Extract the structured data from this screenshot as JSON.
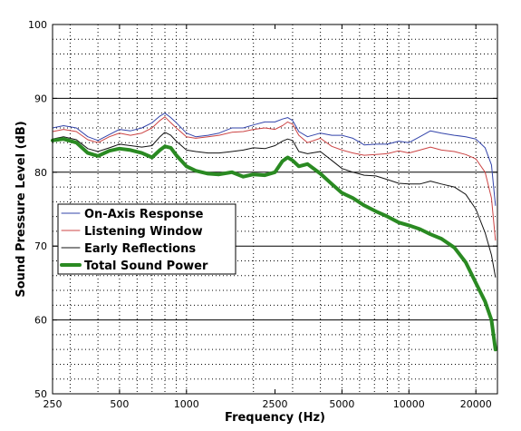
{
  "chart_data": {
    "type": "line",
    "xlabel": "Frequency (Hz)",
    "ylabel": "Sound Pressure Level (dB)",
    "x_scale": "log",
    "xlim": [
      250,
      25000
    ],
    "ylim": [
      50,
      100
    ],
    "x_ticks": [
      250,
      500,
      1000,
      2500,
      5000,
      10000,
      20000
    ],
    "x_tick_labels": [
      "250",
      "500",
      "1000",
      "2500",
      "5000",
      "10000",
      "20000"
    ],
    "y_ticks": [
      50,
      60,
      70,
      80,
      90,
      100
    ],
    "y_tick_labels": [
      "50",
      "60",
      "70",
      "80",
      "90",
      "100"
    ],
    "grid": {
      "major_y": "solid",
      "minor": "dotted"
    },
    "legend": "lower-left",
    "series": [
      {
        "name": "On-Axis Response",
        "color": "#3344aa",
        "x": [
          250,
          280,
          320,
          360,
          400,
          450,
          500,
          560,
          630,
          700,
          760,
          800,
          850,
          900,
          1000,
          1100,
          1250,
          1400,
          1600,
          1800,
          2000,
          2250,
          2500,
          2700,
          2850,
          3000,
          3200,
          3500,
          4000,
          4500,
          5000,
          5600,
          6300,
          7100,
          8000,
          9000,
          10000,
          11200,
          12500,
          14000,
          16000,
          18000,
          20000,
          22000,
          23500,
          24500
        ],
        "y": [
          86.0,
          86.3,
          86.0,
          84.8,
          84.3,
          85.1,
          85.8,
          85.6,
          86.0,
          86.7,
          87.6,
          88.0,
          87.4,
          86.7,
          85.3,
          84.8,
          85.0,
          85.3,
          86.0,
          86.0,
          86.4,
          86.8,
          86.8,
          87.2,
          87.4,
          87.0,
          85.5,
          84.8,
          85.3,
          85.0,
          85.0,
          84.6,
          83.7,
          83.8,
          83.8,
          84.2,
          84.0,
          84.8,
          85.6,
          85.3,
          85.0,
          84.8,
          84.5,
          83.3,
          81.0,
          75.5
        ]
      },
      {
        "name": "Listening Window",
        "color": "#cc4444",
        "x": [
          250,
          280,
          320,
          360,
          400,
          450,
          500,
          560,
          630,
          700,
          760,
          800,
          850,
          900,
          1000,
          1100,
          1250,
          1400,
          1600,
          1800,
          2000,
          2250,
          2500,
          2700,
          2850,
          3000,
          3200,
          3500,
          4000,
          4500,
          5000,
          5600,
          6300,
          7100,
          8000,
          9000,
          10000,
          11200,
          12500,
          14000,
          16000,
          18000,
          20000,
          22000,
          23500,
          24500
        ],
        "y": [
          85.5,
          85.8,
          85.5,
          84.4,
          84.0,
          84.8,
          85.3,
          85.0,
          85.3,
          86.0,
          87.0,
          87.5,
          86.7,
          86.0,
          84.8,
          84.6,
          84.8,
          85.0,
          85.4,
          85.5,
          85.8,
          86.0,
          85.8,
          86.3,
          86.8,
          86.5,
          85.0,
          84.0,
          84.6,
          83.5,
          83.0,
          82.6,
          82.3,
          82.4,
          82.5,
          82.9,
          82.6,
          83.0,
          83.4,
          83.0,
          82.8,
          82.4,
          81.8,
          80.0,
          76.5,
          70.8
        ]
      },
      {
        "name": "Early Reflections",
        "color": "#111111",
        "x": [
          250,
          280,
          320,
          360,
          400,
          450,
          500,
          560,
          630,
          700,
          760,
          800,
          850,
          900,
          1000,
          1100,
          1250,
          1400,
          1600,
          1800,
          2000,
          2250,
          2500,
          2700,
          2850,
          3000,
          3200,
          3500,
          4000,
          4500,
          5000,
          5600,
          6300,
          7100,
          8000,
          9000,
          10000,
          11200,
          12500,
          14000,
          16000,
          18000,
          20000,
          22000,
          23500,
          24500
        ],
        "y": [
          84.5,
          84.8,
          84.4,
          83.2,
          82.8,
          83.3,
          83.8,
          83.6,
          83.4,
          83.6,
          84.8,
          85.4,
          85.0,
          84.2,
          83.0,
          82.8,
          82.6,
          82.6,
          82.8,
          83.0,
          83.3,
          83.2,
          83.6,
          84.2,
          84.5,
          84.3,
          82.8,
          82.5,
          82.8,
          81.6,
          80.5,
          80.0,
          79.6,
          79.5,
          79.0,
          78.5,
          78.4,
          78.4,
          78.8,
          78.4,
          78.0,
          77.0,
          75.0,
          71.8,
          68.8,
          65.8
        ]
      },
      {
        "name": "Total Sound Power",
        "color": "#2a8a22",
        "x": [
          250,
          280,
          320,
          360,
          400,
          450,
          500,
          560,
          630,
          700,
          760,
          800,
          850,
          900,
          1000,
          1100,
          1250,
          1400,
          1600,
          1800,
          2000,
          2250,
          2500,
          2700,
          2850,
          3000,
          3200,
          3500,
          4000,
          4500,
          5000,
          5600,
          6300,
          7100,
          8000,
          9000,
          10000,
          11200,
          12500,
          14000,
          16000,
          18000,
          20000,
          22000,
          23500,
          24500
        ],
        "y": [
          84.3,
          84.5,
          84.0,
          82.6,
          82.2,
          82.9,
          83.2,
          83.0,
          82.6,
          82.0,
          83.0,
          83.5,
          83.3,
          82.3,
          80.8,
          80.2,
          79.8,
          79.7,
          80.0,
          79.4,
          79.7,
          79.6,
          80.0,
          81.5,
          82.0,
          81.6,
          80.8,
          81.1,
          79.8,
          78.4,
          77.2,
          76.5,
          75.5,
          74.7,
          74.0,
          73.2,
          72.8,
          72.3,
          71.6,
          71.0,
          69.8,
          67.8,
          65.0,
          62.5,
          60.0,
          56.0
        ]
      }
    ]
  }
}
